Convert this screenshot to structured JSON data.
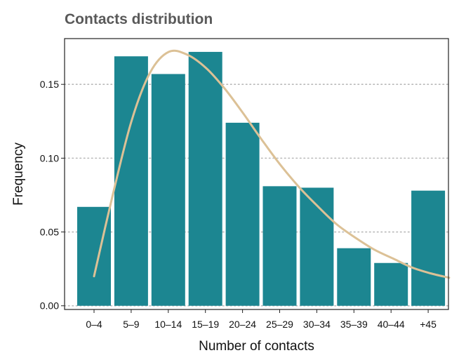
{
  "chart_data": {
    "type": "bar",
    "title": "Contacts distribution",
    "xlabel": "Number of contacts",
    "ylabel": "Frequency",
    "categories": [
      "0–4",
      "5–9",
      "10–14",
      "15–19",
      "20–24",
      "25–29",
      "30–34",
      "35–39",
      "40–44",
      "+45"
    ],
    "values": [
      0.067,
      0.169,
      0.157,
      0.172,
      0.124,
      0.081,
      0.08,
      0.039,
      0.029,
      0.078
    ],
    "ylim": [
      -0.0025,
      0.181
    ],
    "yticks": [
      "0.00",
      "0.05",
      "0.10",
      "0.15"
    ],
    "grid": "horizontal dotted",
    "overlay_curve": [
      {
        "x": 0.0,
        "y": 0.02
      },
      {
        "x": 0.5,
        "y": 0.075
      },
      {
        "x": 1.0,
        "y": 0.125
      },
      {
        "x": 1.5,
        "y": 0.158
      },
      {
        "x": 2.0,
        "y": 0.172
      },
      {
        "x": 2.5,
        "y": 0.17
      },
      {
        "x": 3.0,
        "y": 0.161
      },
      {
        "x": 3.5,
        "y": 0.147
      },
      {
        "x": 4.0,
        "y": 0.13
      },
      {
        "x": 4.5,
        "y": 0.112
      },
      {
        "x": 5.0,
        "y": 0.095
      },
      {
        "x": 5.5,
        "y": 0.08
      },
      {
        "x": 6.0,
        "y": 0.067
      },
      {
        "x": 6.5,
        "y": 0.055
      },
      {
        "x": 7.0,
        "y": 0.046
      },
      {
        "x": 7.5,
        "y": 0.038
      },
      {
        "x": 8.0,
        "y": 0.032
      },
      {
        "x": 8.5,
        "y": 0.026
      },
      {
        "x": 9.0,
        "y": 0.022
      },
      {
        "x": 9.5,
        "y": 0.019
      }
    ],
    "colors": {
      "bar": "#1c8691",
      "curve": "#dcc196",
      "grid": "#b8b8b8",
      "frame": "#222222"
    }
  }
}
